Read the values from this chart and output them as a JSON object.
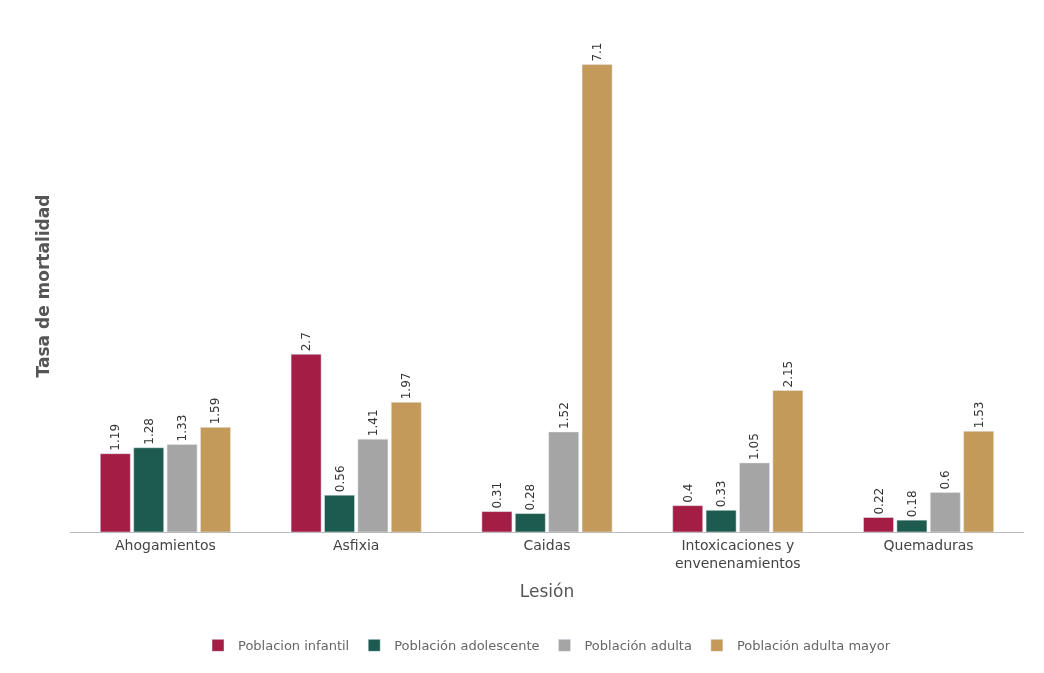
{
  "chart_data": {
    "type": "bar",
    "xlabel": "Lesión",
    "ylabel": "Tasa de mortalidad",
    "categories": [
      "Ahogamientos",
      "Asfixia",
      "Caidas",
      "Intoxicaciones y envenenamientos",
      "Quemaduras"
    ],
    "series": [
      {
        "name": "Poblacion infantil",
        "color": "#a31d44",
        "values": [
          1.19,
          2.7,
          0.31,
          0.4,
          0.22
        ]
      },
      {
        "name": "Población adolescente",
        "color": "#1e5b4f",
        "values": [
          1.28,
          0.56,
          0.28,
          0.33,
          0.18
        ]
      },
      {
        "name": "Población adulta",
        "color": "#a5a5a5",
        "values": [
          1.33,
          1.41,
          1.52,
          1.05,
          0.6
        ]
      },
      {
        "name": "Población adulta mayor",
        "color": "#c49a5a",
        "values": [
          1.59,
          1.97,
          7.1,
          2.15,
          1.53
        ]
      }
    ],
    "data_labels": true,
    "legend": "bottom"
  }
}
